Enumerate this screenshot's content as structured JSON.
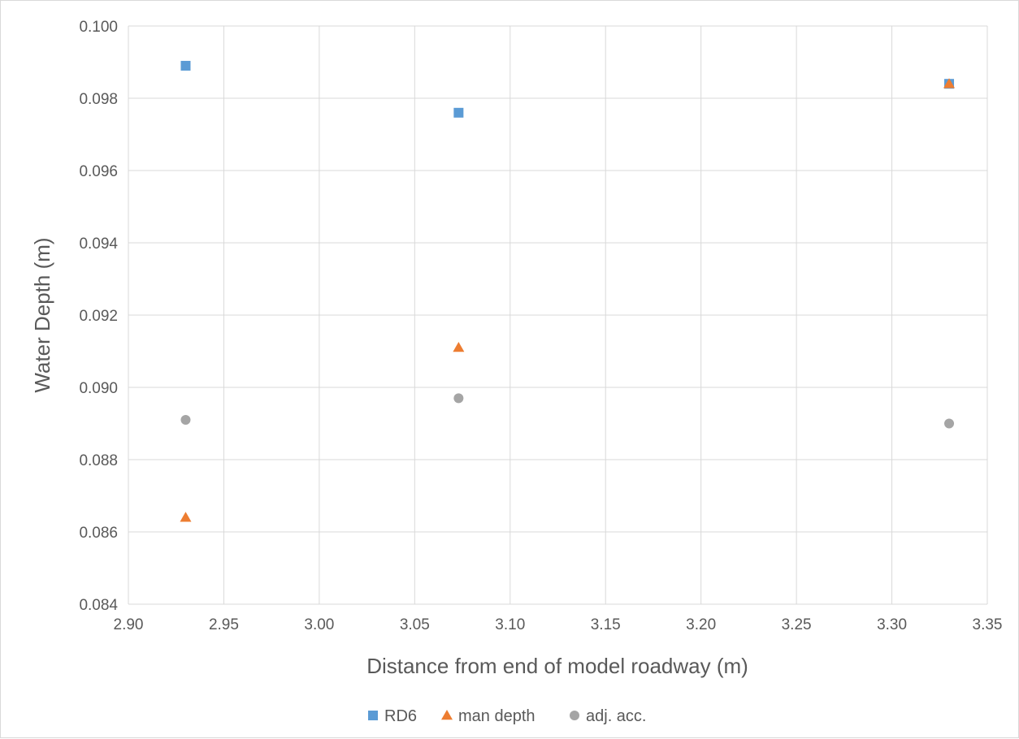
{
  "chart_data": {
    "type": "scatter",
    "title": "",
    "xlabel": "Distance from end of model roadway (m)",
    "ylabel": "Water Depth (m)",
    "xlim": [
      2.9,
      3.35
    ],
    "ylim": [
      0.084,
      0.1
    ],
    "x_ticks": [
      "2.90",
      "2.95",
      "3.00",
      "3.05",
      "3.10",
      "3.15",
      "3.20",
      "3.25",
      "3.30",
      "3.35"
    ],
    "y_ticks": [
      "0.084",
      "0.086",
      "0.088",
      "0.090",
      "0.092",
      "0.094",
      "0.096",
      "0.098",
      "0.100"
    ],
    "grid": true,
    "legend_position": "bottom",
    "series": [
      {
        "name": "RD6",
        "marker": "square",
        "color": "#5b9bd5",
        "points": [
          {
            "x": 2.93,
            "y": 0.0989
          },
          {
            "x": 3.073,
            "y": 0.0976
          },
          {
            "x": 3.33,
            "y": 0.0984
          }
        ]
      },
      {
        "name": "man depth",
        "marker": "triangle",
        "color": "#ed7d31",
        "points": [
          {
            "x": 2.93,
            "y": 0.0864
          },
          {
            "x": 3.073,
            "y": 0.0911
          },
          {
            "x": 3.33,
            "y": 0.0984
          }
        ]
      },
      {
        "name": "adj. acc.",
        "marker": "circle",
        "color": "#a5a5a5",
        "points": [
          {
            "x": 2.93,
            "y": 0.0891
          },
          {
            "x": 3.073,
            "y": 0.0897
          },
          {
            "x": 3.33,
            "y": 0.089
          }
        ]
      }
    ]
  }
}
